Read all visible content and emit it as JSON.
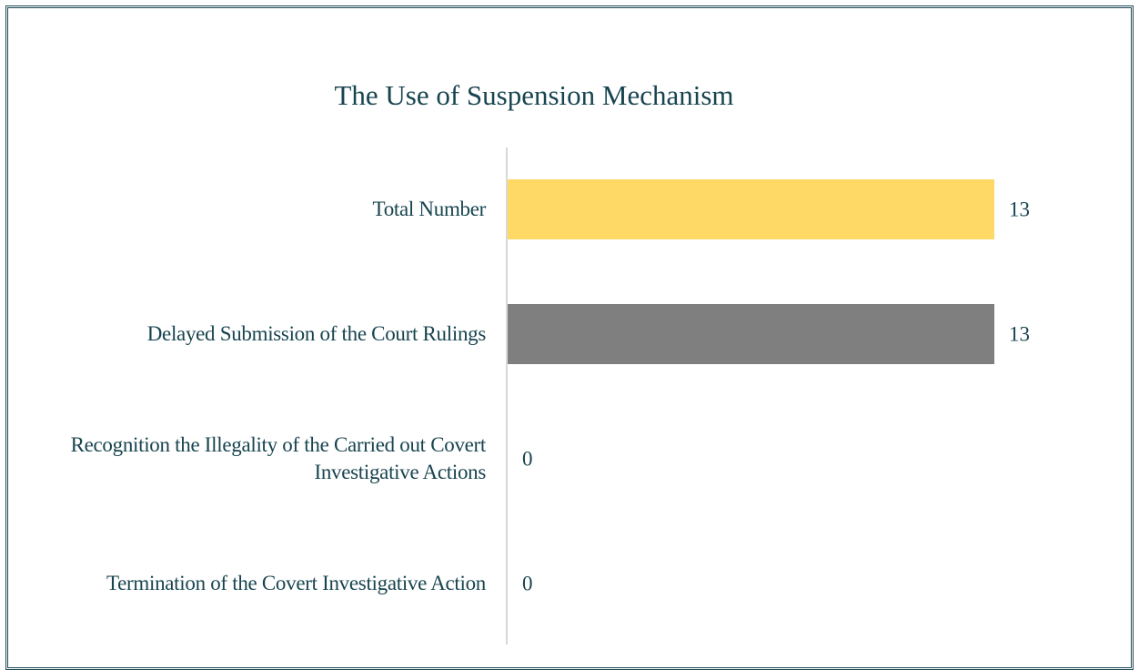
{
  "chart_data": {
    "type": "bar",
    "orientation": "horizontal",
    "title": "The Use of Suspension Mechanism",
    "categories": [
      "Total Number",
      "Delayed Submission of the Court Rulings",
      "Recognition the Illegality of the Carried out Covert Investigative Actions",
      "Termination of the Covert Investigative Action"
    ],
    "values": [
      13,
      13,
      0,
      0
    ],
    "colors": [
      "#ffd966",
      "#7f7f7f",
      "#7f7f7f",
      "#7f7f7f"
    ],
    "xlim": [
      0,
      13
    ]
  }
}
